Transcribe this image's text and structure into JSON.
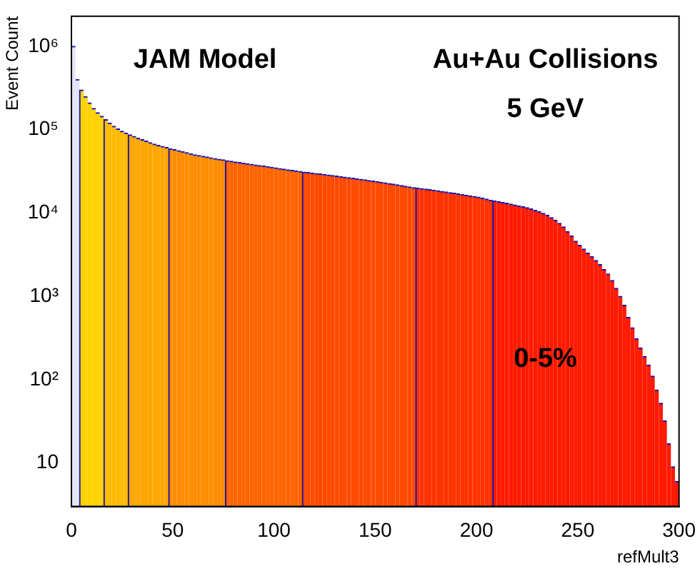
{
  "chart_data": {
    "type": "histogram",
    "xlabel": "refMult3",
    "ylabel": "Event Count",
    "annotations": [
      "JAM Model",
      "Au+Au Collisions",
      "5 GeV",
      "0-5%"
    ],
    "bins": [
      0,
      2,
      4,
      6,
      8,
      10,
      12,
      14,
      16,
      18,
      20,
      22,
      24,
      26,
      28,
      30,
      32,
      34,
      36,
      38,
      40,
      42,
      44,
      46,
      48,
      50,
      52,
      54,
      56,
      58,
      60,
      62,
      64,
      66,
      68,
      70,
      72,
      74,
      76,
      78,
      80,
      82,
      84,
      86,
      88,
      90,
      92,
      94,
      96,
      98,
      100,
      102,
      104,
      106,
      108,
      110,
      112,
      114,
      116,
      118,
      120,
      122,
      124,
      126,
      128,
      130,
      132,
      134,
      136,
      138,
      140,
      142,
      144,
      146,
      148,
      150,
      152,
      154,
      156,
      158,
      160,
      162,
      164,
      166,
      168,
      170,
      172,
      174,
      176,
      178,
      180,
      182,
      184,
      186,
      188,
      190,
      192,
      194,
      196,
      198,
      200,
      202,
      204,
      206,
      208,
      210,
      212,
      214,
      216,
      218,
      220,
      222,
      224,
      226,
      228,
      230,
      232,
      234,
      236,
      238,
      240,
      242,
      244,
      246,
      248,
      250,
      252,
      254,
      256,
      258,
      260,
      262,
      264,
      266,
      268,
      270,
      272,
      274,
      276,
      278,
      280,
      282,
      284,
      286,
      288,
      290,
      292,
      294,
      296,
      298,
      300
    ],
    "values": [
      1000000,
      400000,
      300000,
      250000,
      210000,
      180000,
      160000,
      145000,
      132000,
      120000,
      110000,
      102000,
      96000,
      91000,
      87000,
      83000,
      79000,
      76000,
      73000,
      70000,
      67000,
      65000,
      63000,
      61000,
      59000,
      57500,
      56000,
      54500,
      53000,
      51500,
      50000,
      49000,
      48000,
      47000,
      46000,
      45000,
      44200,
      43500,
      42500,
      41800,
      41100,
      40400,
      39700,
      39000,
      38400,
      37800,
      37200,
      36600,
      36000,
      35400,
      34800,
      34200,
      33600,
      33000,
      32500,
      32000,
      31500,
      31000,
      30600,
      30200,
      29800,
      29400,
      29000,
      28600,
      28200,
      27800,
      27400,
      27000,
      26600,
      26200,
      25800,
      25400,
      25000,
      24600,
      24200,
      23800,
      23400,
      23000,
      22600,
      22200,
      21800,
      21400,
      21000,
      20600,
      20200,
      20000,
      19700,
      19400,
      19100,
      18800,
      18500,
      18200,
      17900,
      17600,
      17300,
      17000,
      16700,
      16400,
      16100,
      15800,
      15500,
      15100,
      14700,
      14300,
      14000,
      13700,
      13400,
      13100,
      12800,
      12500,
      12200,
      11900,
      11600,
      11200,
      10800,
      10400,
      9900,
      9400,
      8800,
      8200,
      7500,
      6800,
      6000,
      5300,
      4600,
      4100,
      3700,
      3300,
      3000,
      2700,
      2400,
      2100,
      1850,
      1550,
      1250,
      1000,
      780,
      560,
      420,
      310,
      240,
      190,
      150,
      110,
      75,
      52,
      32,
      17,
      9,
      6
    ],
    "colors": [
      "#e4e4f8",
      "#e4e4f8",
      "#ffd200",
      "#ffd200",
      "#ffd200",
      "#ffd200",
      "#ffd200",
      "#ffd200",
      "#ffbb00",
      "#ffbb00",
      "#ffbb00",
      "#ffbb00",
      "#ffbb00",
      "#ffbb00",
      "#ffa600",
      "#ffa600",
      "#ffa600",
      "#ffa600",
      "#ffa600",
      "#ffa600",
      "#ffa600",
      "#ffa600",
      "#ffa600",
      "#ffa600",
      "#ff8c00",
      "#ff8c00",
      "#ff8c00",
      "#ff8c00",
      "#ff8c00",
      "#ff8c00",
      "#ff8c00",
      "#ff8c00",
      "#ff8c00",
      "#ff8c00",
      "#ff8c00",
      "#ff8c00",
      "#ff8c00",
      "#ff8c00",
      "#ff6400",
      "#ff6400",
      "#ff6400",
      "#ff6400",
      "#ff6400",
      "#ff6400",
      "#ff6400",
      "#ff6400",
      "#ff6400",
      "#ff6400",
      "#ff6400",
      "#ff6400",
      "#ff6400",
      "#ff6400",
      "#ff6400",
      "#ff6400",
      "#ff6400",
      "#ff6400",
      "#ff6400",
      "#ff4a00",
      "#ff4a00",
      "#ff4a00",
      "#ff4a00",
      "#ff4a00",
      "#ff4a00",
      "#ff4a00",
      "#ff4a00",
      "#ff4a00",
      "#ff4a00",
      "#ff4a00",
      "#ff4a00",
      "#ff4a00",
      "#ff4a00",
      "#ff4a00",
      "#ff4a00",
      "#ff4a00",
      "#ff4a00",
      "#ff4a00",
      "#ff4a00",
      "#ff4a00",
      "#ff4a00",
      "#ff4a00",
      "#ff4a00",
      "#ff4a00",
      "#ff4a00",
      "#ff4a00",
      "#ff4a00",
      "#ff3200",
      "#ff3200",
      "#ff3200",
      "#ff3200",
      "#ff3200",
      "#ff3200",
      "#ff3200",
      "#ff3200",
      "#ff3200",
      "#ff3200",
      "#ff3200",
      "#ff3200",
      "#ff3200",
      "#ff3200",
      "#ff3200",
      "#ff3200",
      "#ff3200",
      "#ff3200",
      "#ff3200",
      "#ff1a00",
      "#ff1a00",
      "#ff1a00",
      "#ff1a00",
      "#ff1a00",
      "#ff1a00",
      "#ff1a00",
      "#ff1a00",
      "#ff1a00",
      "#ff1a00",
      "#ff1a00",
      "#ff1a00",
      "#ff1a00",
      "#ff1a00",
      "#ff1a00",
      "#ff1a00",
      "#ff1a00",
      "#ff1a00",
      "#ff1a00",
      "#ff1a00",
      "#ff1a00",
      "#ff1a00",
      "#ff1a00",
      "#ff1a00",
      "#ff1a00",
      "#ff1a00",
      "#ff1a00",
      "#ff1a00",
      "#ff1a00",
      "#ff1a00",
      "#ff1a00",
      "#ff1a00",
      "#ff1a00",
      "#ff1a00",
      "#ff1a00",
      "#ff1a00",
      "#ff1a00",
      "#ff1a00",
      "#ff1a00",
      "#ff1a00",
      "#ff1a00",
      "#ff1a00",
      "#ff1a00",
      "#ff1a00",
      "#ff1a00",
      "#ff1a00"
    ],
    "xlim": [
      0,
      300
    ],
    "xticks": [
      0,
      50,
      100,
      150,
      200,
      250,
      300
    ],
    "ylim": [
      3,
      2300000
    ],
    "yticks": [
      10,
      {
        "value": 100,
        "label": "10²"
      },
      {
        "value": 1000,
        "label": "10³"
      },
      {
        "value": 10000,
        "label": "10⁴"
      },
      {
        "value": 100000,
        "label": "10⁵"
      },
      {
        "value": 1000000,
        "label": "10⁶"
      }
    ],
    "log": "y",
    "grid": false,
    "legend": false
  }
}
